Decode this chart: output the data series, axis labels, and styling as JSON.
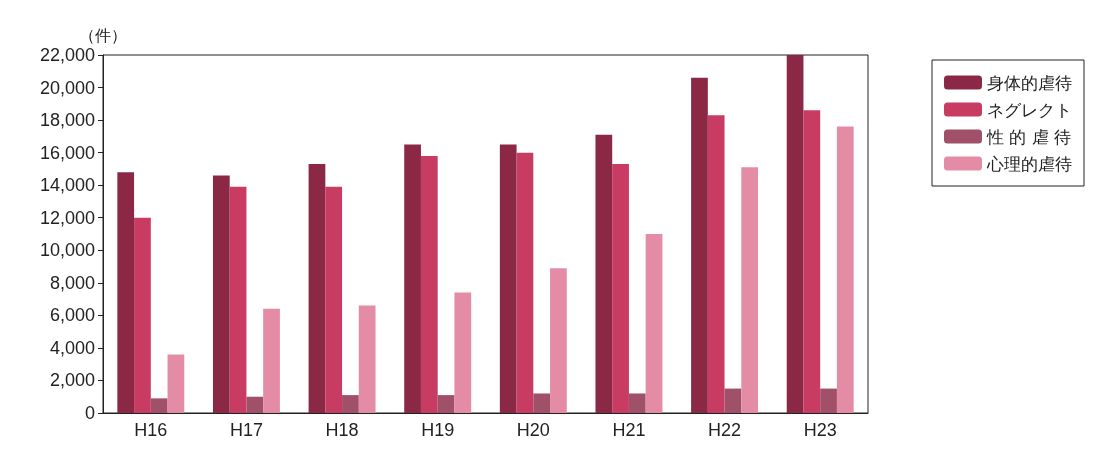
{
  "chart_data": {
    "type": "bar",
    "ylabel": "（件）",
    "categories": [
      "H16",
      "H17",
      "H18",
      "H19",
      "H20",
      "H21",
      "H22",
      "H23"
    ],
    "series": [
      {
        "name": "身体的虐待",
        "color": "#8b2846",
        "values": [
          14800,
          14600,
          15300,
          16500,
          16500,
          17100,
          20600,
          22000
        ]
      },
      {
        "name": "ネグレクト",
        "color": "#c83c64",
        "values": [
          12000,
          13900,
          13900,
          15800,
          16000,
          15300,
          18300,
          18600
        ]
      },
      {
        "name": "性 的 虐 待",
        "color": "#a05068",
        "values": [
          900,
          1000,
          1100,
          1100,
          1200,
          1200,
          1500,
          1500
        ]
      },
      {
        "name": "心理的虐待",
        "color": "#e48ca6",
        "values": [
          3600,
          6400,
          6600,
          7400,
          8900,
          11000,
          15100,
          17600
        ]
      }
    ],
    "ylim": [
      0,
      22000
    ],
    "yticks": [
      0,
      {
        "value": 2000,
        "label": "2,000"
      },
      {
        "value": 4000,
        "label": "4,000"
      },
      {
        "value": 6000,
        "label": "6,000"
      },
      {
        "value": 8000,
        "label": "8,000"
      },
      {
        "value": 10000,
        "label": "10,000"
      },
      {
        "value": 12000,
        "label": "12,000"
      },
      {
        "value": 14000,
        "label": "14,000"
      },
      {
        "value": 16000,
        "label": "16,000"
      },
      {
        "value": 18000,
        "label": "18,000"
      },
      {
        "value": 20000,
        "label": "20,000"
      },
      {
        "value": 22000,
        "label": "22,000"
      }
    ],
    "grid": false,
    "legend": "top right"
  }
}
